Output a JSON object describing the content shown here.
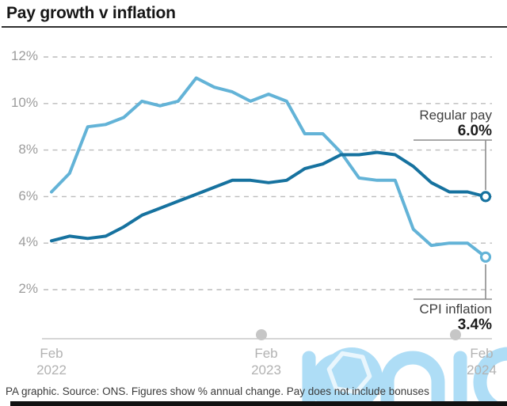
{
  "title": "Pay growth v inflation",
  "footer": "PA graphic. Source: ONS. Figures show % annual change. Pay does not include bonuses",
  "watermark_text": "iconic",
  "colors": {
    "regular_pay": "#16729f",
    "cpi_inflation": "#63b3d7",
    "gridline": "#bcbcbc",
    "axis_line": "#c9c9c9",
    "tick_dot": "#c6c6c6",
    "watermark_blue": "#aeddf6",
    "y_label_gray": "#9c9c9c",
    "x_label_gray": "#b2b2b2"
  },
  "axes": {
    "y_labels": [
      "12%",
      "10%",
      "8%",
      "6%",
      "4%",
      "2%"
    ],
    "x_labels": [
      {
        "line1": "Feb",
        "line2": "2022"
      },
      {
        "line1": "Feb",
        "line2": "2023"
      },
      {
        "line1": "Feb",
        "line2": "2024"
      }
    ]
  },
  "annotations": {
    "regular_pay": {
      "label": "Regular pay",
      "value": "6.0%"
    },
    "cpi_inflation": {
      "label": "CPI inflation",
      "value": "3.4%"
    }
  },
  "chart_data": {
    "type": "line",
    "title": "Pay growth v inflation",
    "x_start": "Feb 2022",
    "x_end": "Feb 2024",
    "x_interval": "monthly",
    "x_tick_labels": [
      "Feb 2022",
      "Feb 2023",
      "Feb 2024"
    ],
    "ylabel": "% annual change",
    "ylim": [
      2,
      12
    ],
    "y_gridlines": [
      12,
      10,
      8,
      6,
      4,
      2
    ],
    "grid": "dashed-horizontal",
    "legend_position": "inline-annotations",
    "series": [
      {
        "name": "CPI inflation",
        "color": "#63b3d7",
        "end_label": "CPI inflation 3.4%",
        "values": [
          6.2,
          7.0,
          9.0,
          9.1,
          9.4,
          10.1,
          9.9,
          10.1,
          11.1,
          10.7,
          10.5,
          10.1,
          10.4,
          10.1,
          8.7,
          8.7,
          7.9,
          6.8,
          6.7,
          6.7,
          4.6,
          3.9,
          4.0,
          4.0,
          3.4
        ]
      },
      {
        "name": "Regular pay",
        "color": "#16729f",
        "end_label": "Regular pay 6.0%",
        "values": [
          4.1,
          4.3,
          4.2,
          4.3,
          4.7,
          5.2,
          5.5,
          5.8,
          6.1,
          6.4,
          6.7,
          6.7,
          6.6,
          6.7,
          7.2,
          7.4,
          7.8,
          7.8,
          7.9,
          7.8,
          7.3,
          6.6,
          6.2,
          6.2,
          6.0
        ]
      }
    ]
  }
}
